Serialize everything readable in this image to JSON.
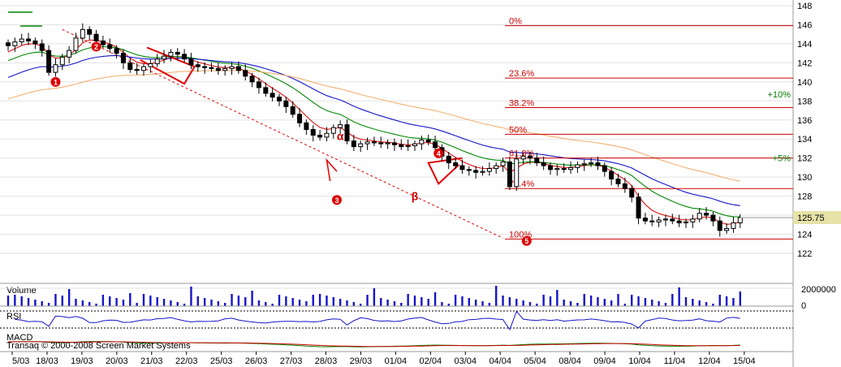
{
  "chart_data": {
    "type": "candlestick",
    "price_axis": {
      "ylim": [
        121.5,
        149
      ],
      "ticks": [
        122,
        124,
        126,
        128,
        130,
        132,
        134,
        136,
        138,
        140,
        142,
        144,
        146,
        148
      ]
    },
    "last_price": "125.75",
    "x_labels": [
      "5/03",
      "18/03",
      "19/03",
      "20/03",
      "21/03",
      "22/03",
      "25/03",
      "26/03",
      "27/03",
      "28/03",
      "29/03",
      "01/04",
      "02/04",
      "03/04",
      "04/04",
      "05/04",
      "08/04",
      "09/04",
      "10/04",
      "11/04",
      "12/04",
      "15/04"
    ],
    "fib_levels": [
      {
        "label": "0%",
        "price": 145.9
      },
      {
        "label": "23.6%",
        "price": 140.4
      },
      {
        "label": "38.2%",
        "price": 137.3
      },
      {
        "label": "50%",
        "price": 134.5
      },
      {
        "label": "61.8%",
        "price": 132.0
      },
      {
        "label": "76.4%",
        "price": 128.8
      },
      {
        "label": "100%",
        "price": 123.5
      }
    ],
    "pct_markers": [
      {
        "label": "+10%",
        "price": 138.7
      },
      {
        "label": "+5%",
        "price": 132.0
      }
    ],
    "annotations": [
      {
        "label": "α",
        "t": 49,
        "price": 133.9
      },
      {
        "label": "β",
        "t": 60,
        "price": 127.6
      }
    ],
    "wave_labels": [
      {
        "label": "1",
        "t": 7,
        "price": 140.0
      },
      {
        "label": "2",
        "t": 13,
        "price": 143.7
      },
      {
        "label": "3",
        "t": 48.5,
        "price": 127.6
      },
      {
        "label": "4",
        "t": 63.5,
        "price": 132.5
      },
      {
        "label": "5",
        "t": 76.5,
        "price": 123.3
      }
    ],
    "closes": [
      143.8,
      144.2,
      144.5,
      144.3,
      144.0,
      143.3,
      141.0,
      141.8,
      142.6,
      143.3,
      144.6,
      145.5,
      145.0,
      144.3,
      143.9,
      143.5,
      143.0,
      142.0,
      141.3,
      141.2,
      141.6,
      141.9,
      142.4,
      142.7,
      143.1,
      142.9,
      142.4,
      141.8,
      141.6,
      141.5,
      141.4,
      141.2,
      141.4,
      141.6,
      141.2,
      140.6,
      140.0,
      139.4,
      138.8,
      138.4,
      138.0,
      137.4,
      136.6,
      135.7,
      135.0,
      134.4,
      134.2,
      134.6,
      135.2,
      135.5,
      133.8,
      133.2,
      133.5,
      133.7,
      133.6,
      133.5,
      133.6,
      133.4,
      133.2,
      133.3,
      133.5,
      133.9,
      133.7,
      133.1,
      132.2,
      131.5,
      131.2,
      130.8,
      130.7,
      130.5,
      130.6,
      130.9,
      131.2,
      131.6,
      129.0,
      131.9,
      132.2,
      132.0,
      131.5,
      131.2,
      130.8,
      130.9,
      130.8,
      131.0,
      131.3,
      131.4,
      131.5,
      131.2,
      130.6,
      129.8,
      129.3,
      128.8,
      127.9,
      125.7,
      125.4,
      125.3,
      125.5,
      125.6,
      125.4,
      125.2,
      125.3,
      125.6,
      126.2,
      126.0,
      125.4,
      124.4,
      124.6,
      125.2,
      125.75
    ],
    "indicators": [
      "Volume",
      "RSI",
      "MACD"
    ],
    "volume_scale": {
      "max_label": "2000000",
      "zero_label": "0"
    },
    "copyright": "Transaq © 2000-2008 Screen Market Systems"
  }
}
